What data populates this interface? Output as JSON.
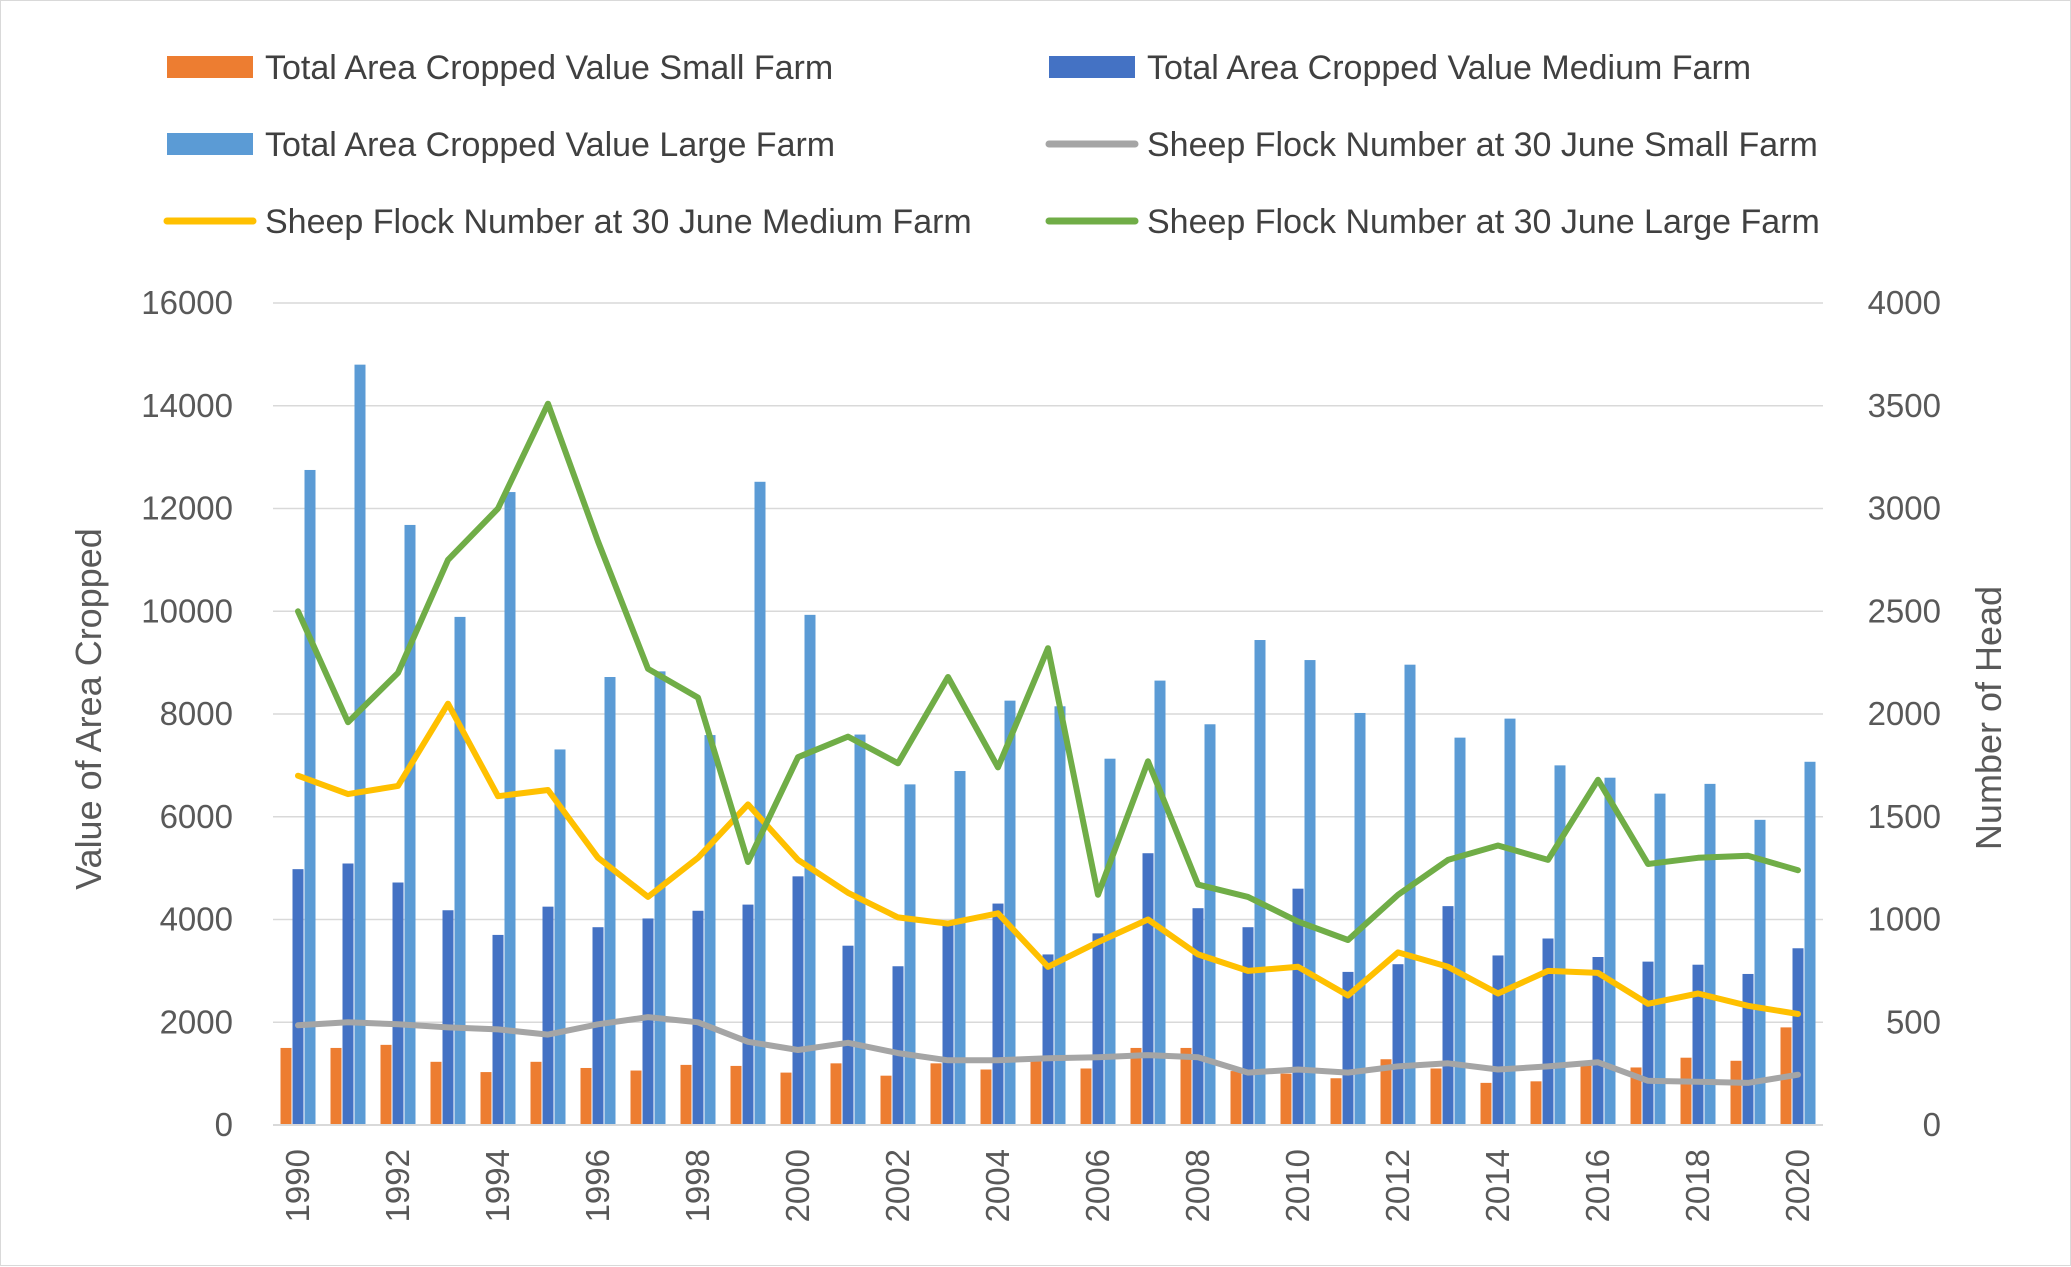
{
  "chart_data": {
    "type": "bar",
    "title": "",
    "xlabel": "",
    "ylabel_left": "Value of Area Cropped",
    "ylabel_right": "Number of Head",
    "ylim_left": [
      0,
      16000
    ],
    "ylim_right": [
      0,
      4000
    ],
    "yticks_left": [
      "0",
      "2000",
      "4000",
      "6000",
      "8000",
      "10000",
      "12000",
      "14000",
      "16000"
    ],
    "yticks_right": [
      "0",
      "500",
      "1000",
      "1500",
      "2000",
      "2500",
      "3000",
      "3500",
      "4000"
    ],
    "grid": "horizontal",
    "legend_position": "top",
    "categories": [
      1990,
      1991,
      1992,
      1993,
      1994,
      1995,
      1996,
      1997,
      1998,
      1999,
      2000,
      2001,
      2002,
      2003,
      2004,
      2005,
      2006,
      2007,
      2008,
      2009,
      2010,
      2011,
      2012,
      2013,
      2014,
      2015,
      2016,
      2017,
      2018,
      2019,
      2020
    ],
    "x_tick_labels": [
      "1990",
      "1992",
      "1994",
      "1996",
      "1998",
      "2000",
      "2002",
      "2004",
      "2006",
      "2008",
      "2010",
      "2012",
      "2014",
      "2016",
      "2018",
      "2020"
    ],
    "bar_series": [
      {
        "name": "Total Area Cropped Value Small Farm",
        "color": "#ed7d31",
        "values": [
          1500,
          1500,
          1560,
          1230,
          1030,
          1230,
          1110,
          1060,
          1170,
          1150,
          1020,
          1200,
          960,
          1200,
          1080,
          1250,
          1100,
          1500,
          1500,
          1050,
          1000,
          910,
          1280,
          1100,
          820,
          850,
          1200,
          1120,
          1310,
          1250,
          1900
        ]
      },
      {
        "name": "Total Area Cropped Value Medium Farm",
        "color": "#4472c4",
        "values": [
          4980,
          5090,
          4720,
          4180,
          3700,
          4250,
          3850,
          4020,
          4170,
          4290,
          4840,
          3490,
          3090,
          3950,
          4310,
          3320,
          3730,
          5290,
          4220,
          3850,
          4600,
          2980,
          3130,
          4260,
          3300,
          3630,
          3270,
          3180,
          3120,
          2940,
          3440
        ]
      },
      {
        "name": "Total Area Cropped Value Large Farm",
        "color": "#5b9bd5",
        "values": [
          12750,
          14800,
          11680,
          9890,
          12320,
          7310,
          8720,
          8830,
          7590,
          12520,
          9930,
          7600,
          6630,
          6890,
          8260,
          8150,
          7130,
          8650,
          7800,
          9440,
          9050,
          8020,
          8960,
          7540,
          7910,
          7000,
          6760,
          6450,
          6640,
          5940,
          7070
        ]
      }
    ],
    "line_series": [
      {
        "name": "Sheep Flock Number at 30 June Small Farm",
        "color": "#a5a5a5",
        "axis": "right",
        "values": [
          485,
          500,
          490,
          475,
          465,
          440,
          490,
          525,
          500,
          405,
          365,
          400,
          350,
          315,
          315,
          325,
          330,
          340,
          330,
          255,
          270,
          255,
          285,
          300,
          270,
          285,
          305,
          215,
          210,
          205,
          245
        ]
      },
      {
        "name": "Sheep Flock Number at 30 June Medium Farm",
        "color": "#ffc000",
        "axis": "right",
        "values": [
          1700,
          1610,
          1650,
          2050,
          1600,
          1630,
          1300,
          1110,
          1300,
          1560,
          1290,
          1130,
          1010,
          980,
          1030,
          770,
          890,
          1000,
          830,
          750,
          770,
          630,
          840,
          770,
          640,
          750,
          740,
          590,
          640,
          580,
          540
        ]
      },
      {
        "name": "Sheep Flock Number at 30 June Large Farm",
        "color": "#70ad47",
        "axis": "right",
        "values": [
          2500,
          1960,
          2200,
          2750,
          3000,
          3510,
          2840,
          2220,
          2080,
          1280,
          1790,
          1890,
          1760,
          2180,
          1740,
          2320,
          1120,
          1770,
          1170,
          1110,
          990,
          900,
          1120,
          1290,
          1360,
          1290,
          1680,
          1270,
          1300,
          1310,
          1240
        ]
      }
    ]
  }
}
